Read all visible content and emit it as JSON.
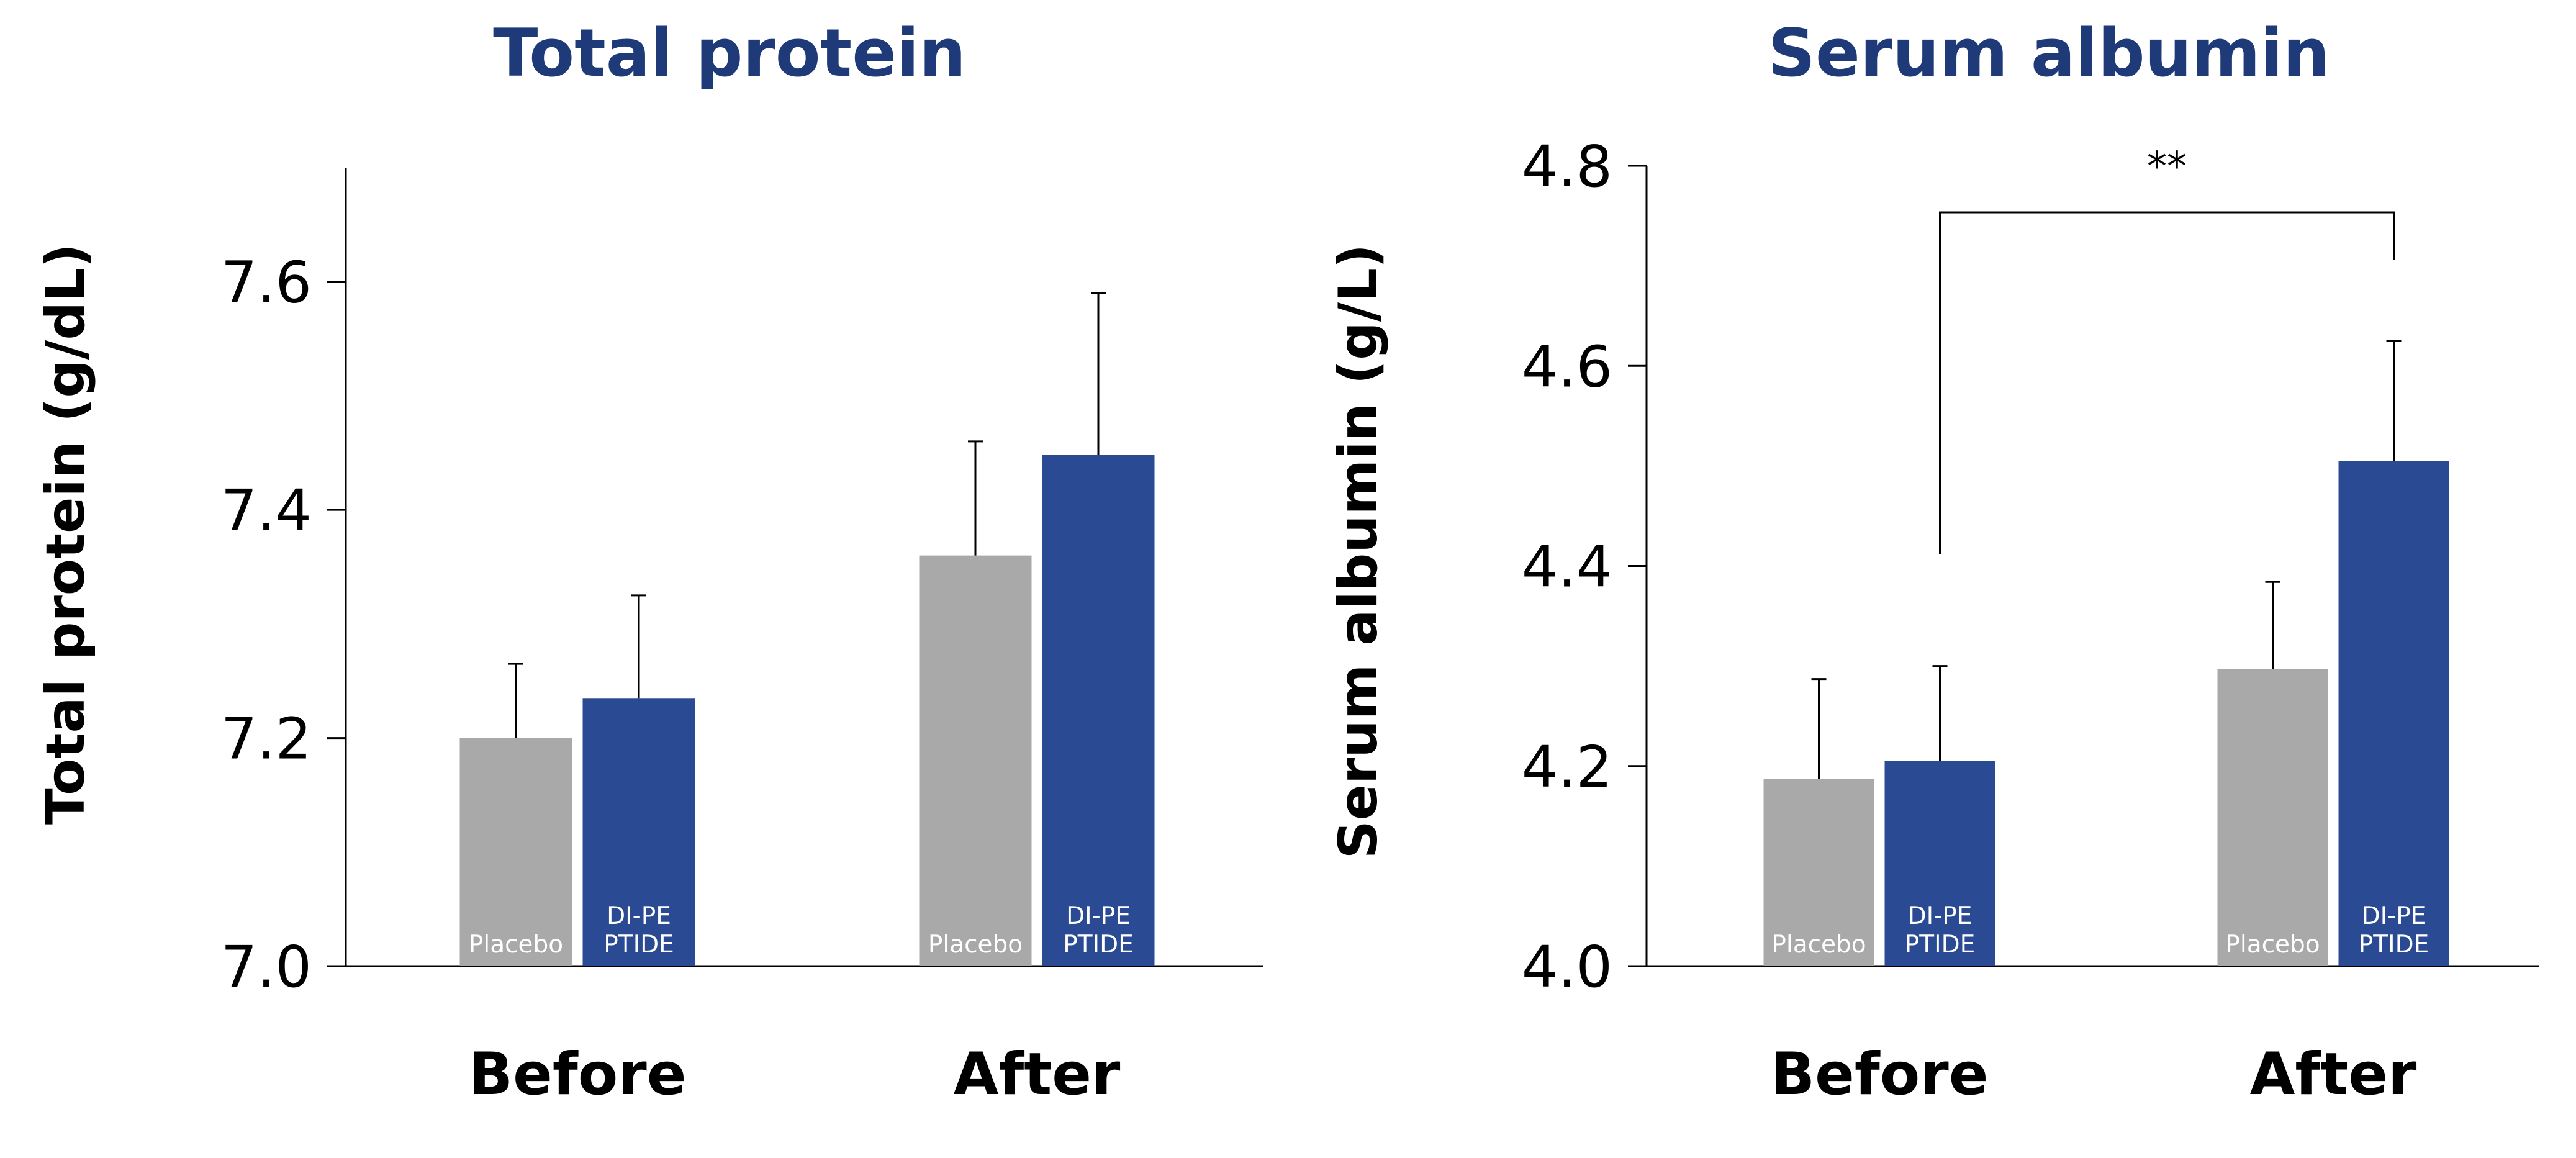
{
  "colors": {
    "placebo": "#a9a9a9",
    "dipeptide": "#2a4a94",
    "title": "#1f3a78",
    "axis": "#000000"
  },
  "chart_data": [
    {
      "type": "bar",
      "title": "Total protein",
      "ylabel": "Total protein (g/dL)",
      "ylim": [
        7.0,
        7.7
      ],
      "yticks": [
        "7.0",
        "7.2",
        "7.4",
        "7.6"
      ],
      "ytick_values": [
        7.0,
        7.2,
        7.4,
        7.6
      ],
      "categories": [
        "Before",
        "After"
      ],
      "series": [
        {
          "name": "Placebo",
          "values": [
            7.2,
            7.36
          ],
          "errors": [
            0.065,
            0.1
          ]
        },
        {
          "name": "DI-PEPTIDE",
          "values": [
            7.235,
            7.448
          ],
          "errors": [
            0.09,
            0.142
          ]
        }
      ],
      "bar_labels": [
        [
          "Placebo"
        ],
        [
          "DI-PE",
          "PTIDE"
        ]
      ]
    },
    {
      "type": "bar",
      "title": "Serum albumin",
      "ylabel": "Serum albumin (g/L)",
      "ylim": [
        4.0,
        4.8
      ],
      "yticks": [
        "4.0",
        "4.2",
        "4.4",
        "4.6",
        "4.8"
      ],
      "ytick_values": [
        4.0,
        4.2,
        4.4,
        4.6,
        4.8
      ],
      "categories": [
        "Before",
        "After"
      ],
      "series": [
        {
          "name": "Placebo",
          "values": [
            4.187,
            4.297
          ],
          "errors": [
            0.1,
            0.087
          ]
        },
        {
          "name": "DI-PEPTIDE",
          "values": [
            4.205,
            4.505
          ],
          "errors": [
            0.095,
            0.12
          ]
        }
      ],
      "bar_labels": [
        [
          "Placebo"
        ],
        [
          "DI-PE",
          "PTIDE"
        ]
      ],
      "significance": {
        "label": "**",
        "from_category": 0,
        "to_category": 1,
        "series": 1
      }
    }
  ]
}
